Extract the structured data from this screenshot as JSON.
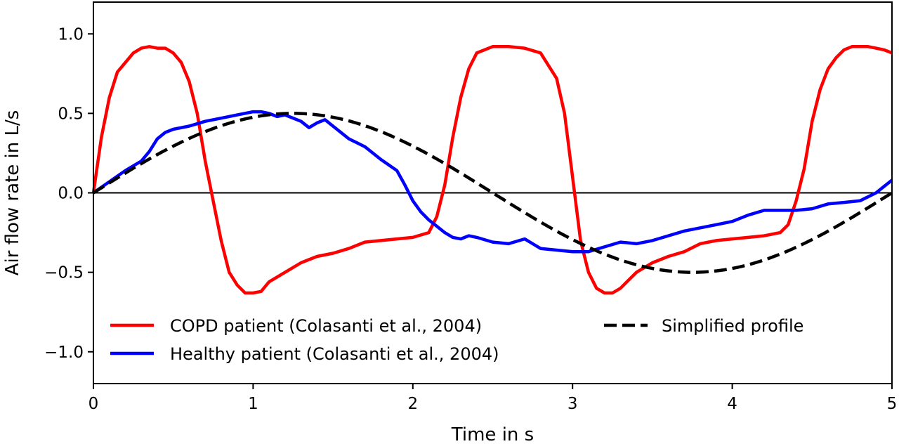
{
  "chart_data": {
    "type": "line",
    "xlabel": "Time in s",
    "ylabel": "Air flow rate in L/s",
    "xlim": [
      0,
      5
    ],
    "ylim": [
      -1.2,
      1.2
    ],
    "x_ticks": [
      0,
      1,
      2,
      3,
      4,
      5
    ],
    "x_tick_labels": [
      "0",
      "1",
      "2",
      "3",
      "4",
      "5"
    ],
    "y_ticks": [
      -1.0,
      -0.5,
      0.0,
      0.5,
      1.0
    ],
    "y_tick_labels": [
      "−1.0",
      "−0.5",
      "0.0",
      "0.5",
      "1.0"
    ],
    "reference_line_y": 0,
    "grid": false,
    "legend_position": "lower-center",
    "series": [
      {
        "name": "COPD patient (Colasanti et al., 2004)",
        "color": "#ff0000",
        "style": "solid",
        "x": [
          0,
          0.05,
          0.1,
          0.15,
          0.2,
          0.25,
          0.3,
          0.35,
          0.4,
          0.45,
          0.5,
          0.55,
          0.6,
          0.65,
          0.7,
          0.75,
          0.8,
          0.85,
          0.9,
          0.95,
          1.0,
          1.05,
          1.1,
          1.2,
          1.3,
          1.4,
          1.5,
          1.6,
          1.7,
          1.8,
          1.9,
          2.0,
          2.1,
          2.15,
          2.2,
          2.25,
          2.3,
          2.35,
          2.4,
          2.5,
          2.6,
          2.7,
          2.8,
          2.9,
          2.95,
          3.0,
          3.05,
          3.1,
          3.15,
          3.2,
          3.25,
          3.3,
          3.4,
          3.5,
          3.6,
          3.7,
          3.8,
          3.9,
          4.0,
          4.1,
          4.2,
          4.3,
          4.35,
          4.4,
          4.45,
          4.5,
          4.55,
          4.6,
          4.65,
          4.7,
          4.75,
          4.8,
          4.85,
          4.9,
          4.95,
          5.0
        ],
        "y": [
          0.0,
          0.35,
          0.6,
          0.76,
          0.82,
          0.88,
          0.91,
          0.92,
          0.91,
          0.91,
          0.88,
          0.82,
          0.7,
          0.5,
          0.2,
          -0.05,
          -0.3,
          -0.5,
          -0.58,
          -0.63,
          -0.63,
          -0.62,
          -0.56,
          -0.5,
          -0.44,
          -0.4,
          -0.38,
          -0.35,
          -0.31,
          -0.3,
          -0.29,
          -0.28,
          -0.25,
          -0.15,
          0.05,
          0.35,
          0.6,
          0.78,
          0.88,
          0.92,
          0.92,
          0.91,
          0.88,
          0.72,
          0.5,
          0.1,
          -0.3,
          -0.5,
          -0.6,
          -0.63,
          -0.63,
          -0.6,
          -0.5,
          -0.44,
          -0.4,
          -0.37,
          -0.32,
          -0.3,
          -0.29,
          -0.28,
          -0.27,
          -0.25,
          -0.2,
          -0.05,
          0.15,
          0.45,
          0.65,
          0.78,
          0.85,
          0.9,
          0.92,
          0.92,
          0.92,
          0.91,
          0.9,
          0.88
        ]
      },
      {
        "name": "Healthy patient (Colasanti et al., 2004)",
        "color": "#0000ff",
        "style": "solid",
        "x": [
          0,
          0.1,
          0.2,
          0.3,
          0.35,
          0.4,
          0.45,
          0.5,
          0.6,
          0.7,
          0.8,
          0.9,
          1.0,
          1.05,
          1.1,
          1.15,
          1.2,
          1.3,
          1.35,
          1.4,
          1.45,
          1.5,
          1.6,
          1.7,
          1.8,
          1.9,
          1.95,
          2.0,
          2.05,
          2.1,
          2.15,
          2.2,
          2.25,
          2.3,
          2.35,
          2.4,
          2.5,
          2.6,
          2.7,
          2.8,
          2.9,
          3.0,
          3.1,
          3.2,
          3.3,
          3.4,
          3.5,
          3.6,
          3.7,
          3.8,
          3.9,
          4.0,
          4.1,
          4.2,
          4.3,
          4.4,
          4.5,
          4.6,
          4.7,
          4.8,
          4.9,
          5.0
        ],
        "y": [
          0.0,
          0.07,
          0.14,
          0.2,
          0.26,
          0.34,
          0.38,
          0.4,
          0.42,
          0.45,
          0.47,
          0.49,
          0.51,
          0.51,
          0.5,
          0.48,
          0.49,
          0.45,
          0.41,
          0.44,
          0.46,
          0.42,
          0.34,
          0.29,
          0.21,
          0.14,
          0.05,
          -0.05,
          -0.12,
          -0.17,
          -0.21,
          -0.25,
          -0.28,
          -0.29,
          -0.27,
          -0.28,
          -0.31,
          -0.32,
          -0.29,
          -0.35,
          -0.36,
          -0.37,
          -0.37,
          -0.34,
          -0.31,
          -0.32,
          -0.3,
          -0.27,
          -0.24,
          -0.22,
          -0.2,
          -0.18,
          -0.14,
          -0.11,
          -0.11,
          -0.11,
          -0.1,
          -0.07,
          -0.06,
          -0.05,
          0.0,
          0.08
        ]
      },
      {
        "name": "Simplified profile",
        "color": "#000000",
        "style": "dashed",
        "function": "0.5*sin(2*pi*t/5)",
        "samples": 201
      }
    ]
  }
}
